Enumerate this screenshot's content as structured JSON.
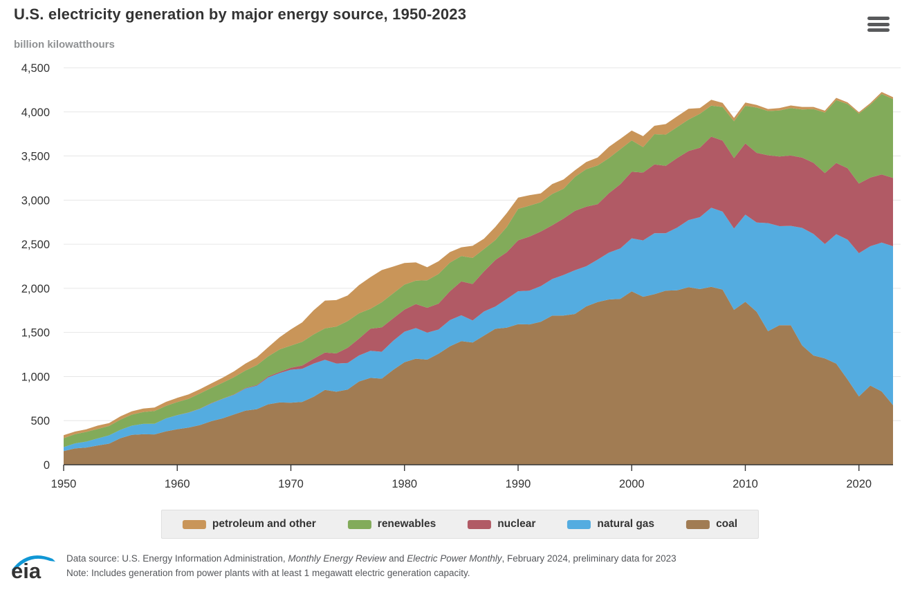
{
  "header": {
    "title": "U.S. electricity generation by major energy source, 1950-2023",
    "subtitle": "billion kilowatthours",
    "menu_icon": "hamburger-icon"
  },
  "chart_data": {
    "type": "area",
    "stacked": true,
    "title": "U.S. electricity generation by major energy source, 1950-2023",
    "ylabel": "billion kilowatthours",
    "xlabel": "",
    "ylim": [
      0,
      4500
    ],
    "ytick_step": 500,
    "xticks": [
      1950,
      1960,
      1970,
      1980,
      1990,
      2000,
      2010,
      2020
    ],
    "grid": true,
    "legend_position": "bottom",
    "x": [
      1950,
      1951,
      1952,
      1953,
      1954,
      1955,
      1956,
      1957,
      1958,
      1959,
      1960,
      1961,
      1962,
      1963,
      1964,
      1965,
      1966,
      1967,
      1968,
      1969,
      1970,
      1971,
      1972,
      1973,
      1974,
      1975,
      1976,
      1977,
      1978,
      1979,
      1980,
      1981,
      1982,
      1983,
      1984,
      1985,
      1986,
      1987,
      1988,
      1989,
      1990,
      1991,
      1992,
      1993,
      1994,
      1995,
      1996,
      1997,
      1998,
      1999,
      2000,
      2001,
      2002,
      2003,
      2004,
      2005,
      2006,
      2007,
      2008,
      2009,
      2010,
      2011,
      2012,
      2013,
      2014,
      2015,
      2016,
      2017,
      2018,
      2019,
      2020,
      2021,
      2022,
      2023
    ],
    "series": [
      {
        "name": "coal",
        "color": "#a17c53",
        "values": [
          155,
          185,
          195,
          219,
          239,
          301,
          339,
          346,
          344,
          378,
          403,
          422,
          450,
          494,
          526,
          571,
          613,
          630,
          685,
          706,
          704,
          713,
          771,
          848,
          828,
          853,
          944,
          985,
          976,
          1075,
          1162,
          1203,
          1192,
          1259,
          1342,
          1402,
          1386,
          1464,
          1541,
          1554,
          1594,
          1591,
          1621,
          1690,
          1691,
          1709,
          1795,
          1845,
          1874,
          1881,
          1966,
          1904,
          1933,
          1974,
          1978,
          2013,
          1991,
          2016,
          1986,
          1756,
          1847,
          1733,
          1514,
          1581,
          1582,
          1352,
          1239,
          1206,
          1146,
          966,
          774,
          898,
          831,
          675
        ]
      },
      {
        "name": "natural gas",
        "color": "#54ace0",
        "values": [
          45,
          57,
          68,
          80,
          94,
          95,
          104,
          117,
          121,
          147,
          158,
          169,
          184,
          202,
          220,
          222,
          251,
          265,
          304,
          333,
          373,
          374,
          376,
          341,
          320,
          300,
          295,
          306,
          305,
          329,
          346,
          346,
          305,
          274,
          297,
          292,
          249,
          273,
          253,
          325,
          373,
          382,
          404,
          415,
          460,
          496,
          455,
          480,
          531,
          571,
          601,
          639,
          691,
          650,
          710,
          761,
          816,
          897,
          883,
          921,
          988,
          1013,
          1225,
          1124,
          1126,
          1333,
          1378,
          1296,
          1468,
          1586,
          1624,
          1579,
          1687,
          1802
        ]
      },
      {
        "name": "nuclear",
        "color": "#b15a65",
        "values": [
          0,
          0,
          0,
          0,
          0,
          0,
          0,
          0,
          0,
          0,
          1,
          2,
          2,
          3,
          3,
          4,
          6,
          8,
          13,
          14,
          22,
          38,
          54,
          83,
          114,
          173,
          191,
          251,
          276,
          255,
          251,
          273,
          283,
          294,
          328,
          384,
          414,
          455,
          527,
          529,
          577,
          613,
          619,
          610,
          640,
          673,
          675,
          629,
          674,
          728,
          754,
          769,
          780,
          764,
          789,
          782,
          787,
          806,
          806,
          799,
          807,
          790,
          769,
          789,
          797,
          797,
          806,
          805,
          807,
          809,
          790,
          778,
          772,
          775
        ]
      },
      {
        "name": "renewables",
        "color": "#82ab5a",
        "values": [
          101,
          105,
          109,
          107,
          107,
          116,
          125,
          134,
          144,
          141,
          148,
          155,
          172,
          172,
          181,
          197,
          198,
          225,
          226,
          254,
          251,
          269,
          276,
          275,
          304,
          303,
          287,
          226,
          285,
          283,
          283,
          266,
          312,
          336,
          324,
          287,
          296,
          253,
          226,
          287,
          357,
          351,
          332,
          354,
          338,
          386,
          426,
          439,
          398,
          397,
          356,
          288,
          343,
          355,
          351,
          357,
          385,
          352,
          381,
          417,
          427,
          513,
          502,
          522,
          538,
          546,
          609,
          686,
          713,
          728,
          792,
          826,
          913,
          894
        ]
      },
      {
        "name": "petroleum and other",
        "color": "#c99559",
        "values": [
          34,
          29,
          30,
          38,
          32,
          37,
          37,
          40,
          40,
          47,
          48,
          49,
          49,
          51,
          57,
          65,
          79,
          89,
          104,
          138,
          184,
          220,
          274,
          314,
          301,
          289,
          320,
          358,
          365,
          304,
          246,
          206,
          147,
          144,
          120,
          100,
          137,
          118,
          149,
          158,
          127,
          119,
          100,
          113,
          105,
          74,
          81,
          90,
          128,
          118,
          111,
          125,
          95,
          119,
          121,
          122,
          64,
          66,
          46,
          39,
          37,
          30,
          23,
          27,
          30,
          28,
          24,
          21,
          25,
          19,
          17,
          19,
          23,
          21
        ]
      }
    ]
  },
  "legend": {
    "items": [
      {
        "label": "petroleum and other",
        "color": "#c99559"
      },
      {
        "label": "renewables",
        "color": "#82ab5a"
      },
      {
        "label": "nuclear",
        "color": "#b15a65"
      },
      {
        "label": "natural gas",
        "color": "#54ace0"
      },
      {
        "label": "coal",
        "color": "#a17c53"
      }
    ]
  },
  "footer": {
    "logo_text": "eia",
    "line1_parts": [
      {
        "text": "Data source: U.S. Energy Information Administration, ",
        "italic": false
      },
      {
        "text": "Monthly Energy Review",
        "italic": true
      },
      {
        "text": " and ",
        "italic": false
      },
      {
        "text": "Electric Power Monthly",
        "italic": true
      },
      {
        "text": ", February 2024, preliminary data for 2023",
        "italic": false
      }
    ],
    "line2": "Note: Includes generation from power plants with at least 1 megawatt electric generation capacity.",
    "logo_blue": "#1097d5"
  }
}
